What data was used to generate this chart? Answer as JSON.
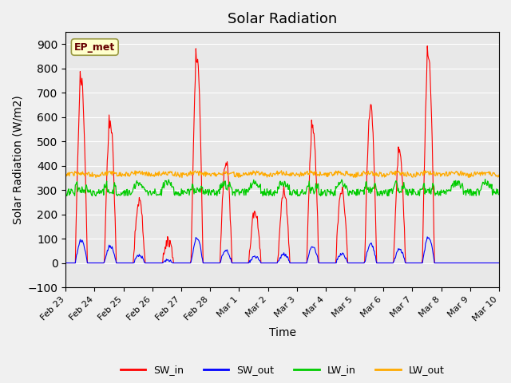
{
  "title": "Solar Radiation",
  "xlabel": "Time",
  "ylabel": "Solar Radiation (W/m2)",
  "ylim": [
    -100,
    950
  ],
  "yticks": [
    -100,
    0,
    100,
    200,
    300,
    400,
    500,
    600,
    700,
    800,
    900
  ],
  "fig_bg_color": "#f0f0f0",
  "plot_bg_color": "#e8e8e8",
  "series_colors": {
    "SW_in": "#ff0000",
    "SW_out": "#0000ff",
    "LW_in": "#00cc00",
    "LW_out": "#ffaa00"
  },
  "annotation_text": "EP_met",
  "annotation_bg": "#ffffcc",
  "annotation_border": "#999944",
  "n_days": 15,
  "xtick_labels": [
    "Feb 23",
    "Feb 24",
    "Feb 25",
    "Feb 26",
    "Feb 27",
    "Feb 28",
    "Mar 1",
    "Mar 2",
    "Mar 3",
    "Mar 4",
    "Mar 5",
    "Mar 6",
    "Mar 7",
    "Mar 8",
    "Mar 9",
    "Mar 10"
  ],
  "peak_heights": [
    750,
    580,
    250,
    90,
    840,
    420,
    215,
    300,
    560,
    300,
    650,
    455,
    850,
    0,
    0
  ],
  "lw_in_base": 310,
  "lw_out_base": 360,
  "legend_entries": [
    "SW_in",
    "SW_out",
    "LW_in",
    "LW_out"
  ]
}
